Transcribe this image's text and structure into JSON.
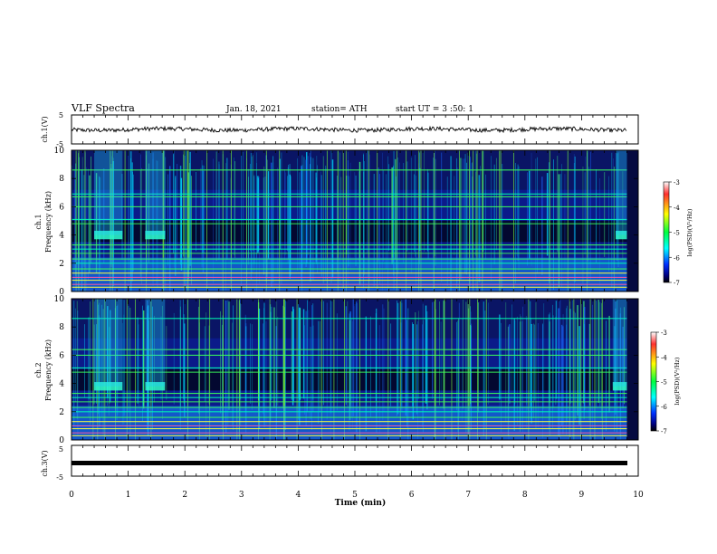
{
  "header": {
    "title": "VLF Spectra",
    "date": "Jan. 18, 2021",
    "station": "station= ATH",
    "start_time": "start  UT  =   3  :50: 1"
  },
  "panels": {
    "ch1_waveform": {
      "ylabel": "ch.1(V)",
      "yticks": [
        "5",
        "-5"
      ]
    },
    "ch1_spectrogram": {
      "ylabel_top": "ch.1",
      "ylabel": "Frequency  (kHz)",
      "yticks": [
        "0",
        "2",
        "4",
        "6",
        "8",
        "10"
      ]
    },
    "ch2_spectrogram": {
      "ylabel_top": "ch.2",
      "ylabel": "Frequency  (kHz)",
      "yticks": [
        "0",
        "2",
        "4",
        "6",
        "8",
        "10"
      ]
    },
    "ch3_waveform": {
      "ylabel": "ch.3(V)",
      "yticks": [
        "5",
        "-5"
      ]
    }
  },
  "colorbar": {
    "label": "log(PSD)(V²/Hz)",
    "ticks": [
      "-3",
      "-4",
      "-5",
      "-6",
      "-7"
    ],
    "colors": [
      "#ffffff",
      "#ff0000",
      "#ffff00",
      "#00ff00",
      "#00ffff",
      "#0000ff",
      "#000000"
    ]
  },
  "xaxis": {
    "label": "Time  (min)",
    "ticks": [
      "0",
      "1",
      "2",
      "3",
      "4",
      "5",
      "6",
      "7",
      "8",
      "9",
      "10"
    ]
  },
  "chart_data": {
    "type": "heatmap",
    "title": "VLF Spectra",
    "xlabel": "Time  (min)",
    "xlim": [
      0,
      10
    ],
    "data_end_min": 9.8,
    "subplots": [
      {
        "name": "ch.1(V)",
        "kind": "waveform",
        "ylim": [
          -5,
          5
        ],
        "mean_level": 0.0
      },
      {
        "name": "ch.1",
        "kind": "spectrogram",
        "ylabel": "Frequency  (kHz)",
        "ylim": [
          0,
          10
        ],
        "clim": [
          -7,
          -3
        ],
        "persistent_bands_khz": [
          0.3,
          0.5,
          0.8,
          1.0,
          1.3,
          1.6,
          2.0,
          2.3,
          2.7,
          3.0,
          3.3,
          4.8,
          5.1,
          6.0,
          6.7,
          6.9,
          8.6
        ],
        "bursts": [
          {
            "t_start": 0.4,
            "t_end": 0.9,
            "f_khz": 4.0
          },
          {
            "t_start": 1.3,
            "t_end": 1.65,
            "f_khz": 4.0
          },
          {
            "t_start": 9.6,
            "t_end": 9.8,
            "f_khz": 4.0
          }
        ]
      },
      {
        "name": "ch.2",
        "kind": "spectrogram",
        "ylabel": "Frequency  (kHz)",
        "ylim": [
          0,
          10
        ],
        "clim": [
          -7,
          -3
        ],
        "persistent_bands_khz": [
          0.3,
          0.5,
          0.8,
          1.0,
          1.3,
          1.6,
          2.0,
          2.3,
          2.7,
          3.0,
          3.3,
          4.8,
          5.1,
          6.0,
          6.4,
          8.6
        ],
        "bursts": [
          {
            "t_start": 0.4,
            "t_end": 0.9,
            "f_khz": 3.8
          },
          {
            "t_start": 1.3,
            "t_end": 1.65,
            "f_khz": 3.8
          },
          {
            "t_start": 9.55,
            "t_end": 9.8,
            "f_khz": 3.8
          }
        ]
      },
      {
        "name": "ch.3(V)",
        "kind": "waveform",
        "ylim": [
          -5,
          5
        ],
        "mean_level": 0.0
      }
    ]
  }
}
